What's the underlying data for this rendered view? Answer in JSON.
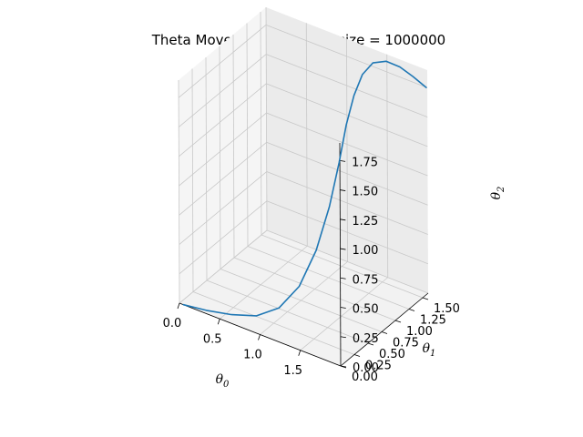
{
  "chart_data": {
    "type": "line",
    "projection": "3d",
    "title": "Theta Movement for batch size = 1000000",
    "xlabel_base": "θ",
    "xlabel_sub": "0",
    "ylabel_base": "θ",
    "ylabel_sub": "1",
    "zlabel_base": "θ",
    "zlabel_sub": "2",
    "xlim": [
      0,
      2
    ],
    "ylim": [
      0,
      1.6
    ],
    "zlim": [
      0,
      1.9
    ],
    "x_ticks": [
      "0.0",
      "0.5",
      "1.0",
      "1.5"
    ],
    "y_ticks": [
      "0.00",
      "0.25",
      "0.50",
      "0.75",
      "1.00",
      "1.25",
      "1.50"
    ],
    "z_ticks": [
      "0.00",
      "0.25",
      "0.50",
      "0.75",
      "1.00",
      "1.25",
      "1.50",
      "1.75"
    ],
    "grid": true,
    "series": [
      {
        "color": "#1f77b4",
        "points": [
          [
            0.05,
            0.0,
            0.0
          ],
          [
            0.3,
            0.05,
            0.0
          ],
          [
            0.55,
            0.13,
            0.0
          ],
          [
            0.78,
            0.26,
            0.0
          ],
          [
            0.95,
            0.42,
            0.05
          ],
          [
            1.08,
            0.6,
            0.2
          ],
          [
            1.17,
            0.78,
            0.46
          ],
          [
            1.22,
            0.95,
            0.78
          ],
          [
            1.24,
            1.1,
            1.1
          ],
          [
            1.25,
            1.22,
            1.38
          ],
          [
            1.28,
            1.32,
            1.6
          ],
          [
            1.33,
            1.4,
            1.76
          ],
          [
            1.42,
            1.46,
            1.86
          ],
          [
            1.55,
            1.51,
            1.89
          ],
          [
            1.7,
            1.54,
            1.87
          ],
          [
            1.85,
            1.56,
            1.82
          ],
          [
            2.0,
            1.58,
            1.76
          ]
        ]
      }
    ]
  }
}
